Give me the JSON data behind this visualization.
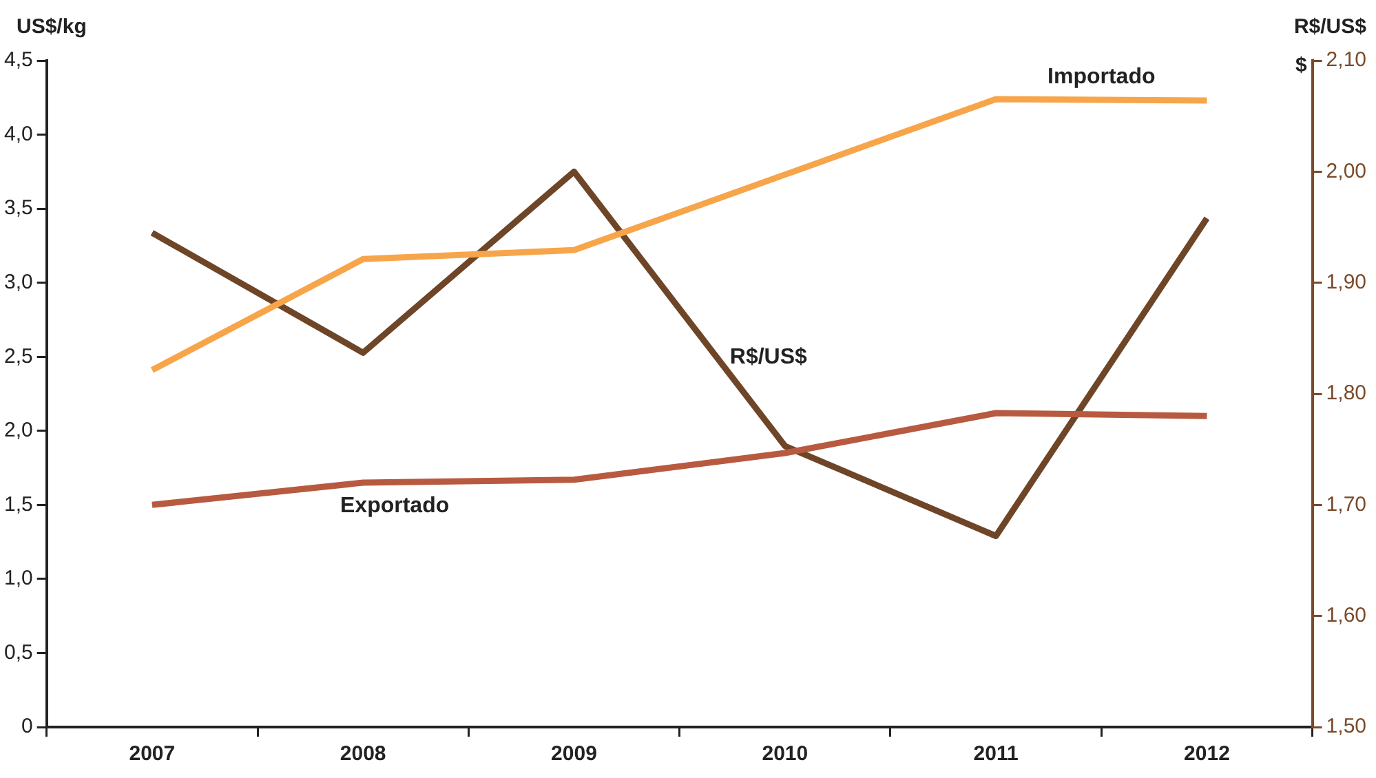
{
  "chart_data": {
    "type": "line",
    "ylabel": "US$/kg",
    "y2label": "R$/US$",
    "annotations": [
      "$"
    ],
    "categories": [
      "2007",
      "2008",
      "2009",
      "2010",
      "2011",
      "2012"
    ],
    "series": [
      {
        "name": "Importado",
        "color": "#f7a54a",
        "values": [
          2.41,
          3.16,
          3.22,
          3.73,
          4.24,
          4.23
        ]
      },
      {
        "name": "Exportado",
        "color": "#b85a40",
        "values": [
          1.5,
          1.65,
          1.67,
          1.85,
          2.12,
          2.1
        ]
      },
      {
        "name": "R$/US$",
        "color": "#6e4527",
        "axis": "y2",
        "values": [
          1.945,
          1.837,
          2.0,
          1.753,
          1.672,
          1.958
        ]
      }
    ],
    "ylim": [
      0,
      4.5
    ],
    "yticks": [
      0,
      {
        "value": 0.5,
        "label": "0,5"
      },
      {
        "value": 1,
        "label": "1,0"
      },
      {
        "value": 1.5,
        "label": "1,5"
      },
      {
        "value": 2,
        "label": "2,0"
      },
      {
        "value": 2.5,
        "label": "2,5"
      },
      {
        "value": 3,
        "label": "3,0"
      },
      {
        "value": 3.5,
        "label": "3,5"
      },
      {
        "value": 4,
        "label": "4,0"
      },
      {
        "value": 4.5,
        "label": "4,5"
      }
    ],
    "y2lim": [
      1.5,
      2.1
    ],
    "y2ticks": [
      {
        "value": 1.5,
        "label": "1,50"
      },
      {
        "value": 1.6,
        "label": "1,60"
      },
      {
        "value": 1.7,
        "label": "1,70"
      },
      {
        "value": 1.8,
        "label": "1,80"
      },
      {
        "value": 1.9,
        "label": "1,90"
      },
      {
        "value": 2.0,
        "label": "2,00"
      },
      {
        "value": 2.1,
        "label": "2,10"
      }
    ],
    "grid": false,
    "legend": false,
    "marker": "none",
    "line_style": "solid"
  }
}
